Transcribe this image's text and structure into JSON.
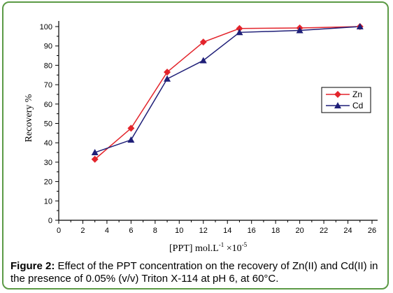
{
  "caption": {
    "label": "Figure 2:",
    "text": " Effect of the PPT concentration on the recovery of Zn(II) and Cd(II) in the presence of 0.05% (v/v) Triton X-114 at pH 6, at 60°C."
  },
  "chart_data": {
    "type": "line",
    "xlabel": "[PPT]  mol.L",
    "xlabel_sup1": "-1",
    "xlabel_mid": "  ×10",
    "xlabel_sup2": "-5",
    "ylabel": "Recovery %",
    "xlim": [
      0,
      26
    ],
    "ylim": [
      0,
      100
    ],
    "xticks": [
      0,
      2,
      4,
      6,
      8,
      10,
      12,
      14,
      16,
      18,
      20,
      22,
      24,
      26
    ],
    "yticks": [
      0,
      10,
      20,
      30,
      40,
      50,
      60,
      70,
      80,
      90,
      100
    ],
    "grid": false,
    "legend_position": "right",
    "series": [
      {
        "name": "Zn",
        "color": "#e3242b",
        "marker": "diamond",
        "x": [
          3,
          6,
          9,
          12,
          15,
          20,
          25
        ],
        "y": [
          31.5,
          47.5,
          76.5,
          92,
          99,
          99.3,
          100
        ]
      },
      {
        "name": "Cd",
        "color": "#1f1f78",
        "marker": "triangle",
        "x": [
          3,
          6,
          9,
          12,
          15,
          20,
          25
        ],
        "y": [
          35,
          41.5,
          73,
          82.5,
          97,
          98,
          100
        ]
      }
    ]
  }
}
